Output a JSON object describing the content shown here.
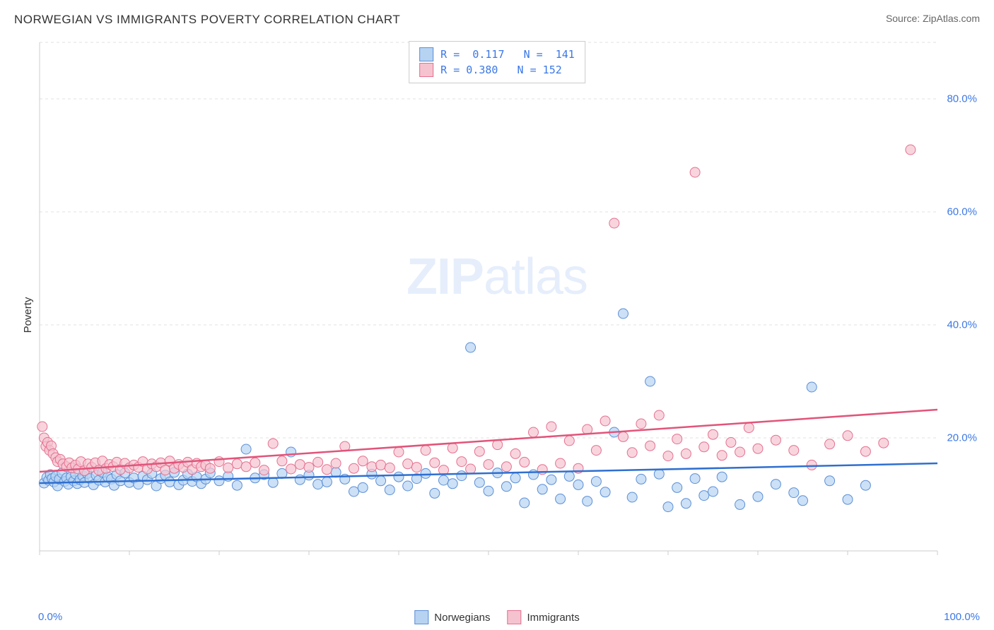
{
  "title": "NORWEGIAN VS IMMIGRANTS POVERTY CORRELATION CHART",
  "source_prefix": "Source: ",
  "source_name": "ZipAtlas.com",
  "watermark_bold": "ZIP",
  "watermark_rest": "atlas",
  "ylabel": "Poverty",
  "chart": {
    "type": "scatter-with-trend",
    "background_color": "#ffffff",
    "grid_color": "#e2e2e2",
    "grid_dash": "4 4",
    "axis_color": "#cccccc",
    "xlim": [
      0,
      100
    ],
    "ylim": [
      0,
      90
    ],
    "y_ticks": [
      20,
      40,
      60,
      80
    ],
    "y_tick_labels": [
      "20.0%",
      "40.0%",
      "60.0%",
      "80.0%"
    ],
    "x_tick_positions": [
      0,
      10,
      20,
      30,
      40,
      50,
      60,
      70,
      80,
      90,
      100
    ],
    "x_axis_left_label": "0.0%",
    "x_axis_right_label": "100.0%",
    "marker_radius": 7,
    "marker_stroke_width": 1,
    "trend_line_width": 2.5,
    "label_fontsize": 15,
    "tick_color": "#3b78e7"
  },
  "series": [
    {
      "key": "norwegians",
      "label": "Norwegians",
      "fill": "#b7d3f2",
      "stroke": "#5b8fd6",
      "line_color": "#2f6fd0",
      "R": "0.117",
      "N": "141",
      "trend": {
        "x1": 0,
        "y1": 12,
        "x2": 100,
        "y2": 15.5
      },
      "points": [
        [
          0.5,
          12
        ],
        [
          0.8,
          13
        ],
        [
          1,
          12.5
        ],
        [
          1.2,
          13.5
        ],
        [
          1.4,
          12.8
        ],
        [
          1.6,
          12.2
        ],
        [
          1.8,
          13.2
        ],
        [
          2,
          11.5
        ],
        [
          2.2,
          12.7
        ],
        [
          2.5,
          13.8
        ],
        [
          2.8,
          12.3
        ],
        [
          3,
          12.9
        ],
        [
          3.2,
          11.8
        ],
        [
          3.5,
          13.1
        ],
        [
          3.8,
          12.4
        ],
        [
          4,
          13.6
        ],
        [
          4.2,
          11.9
        ],
        [
          4.5,
          12.6
        ],
        [
          4.8,
          13.3
        ],
        [
          5,
          12.1
        ],
        [
          5.3,
          13.7
        ],
        [
          5.6,
          12.8
        ],
        [
          6,
          11.7
        ],
        [
          6.3,
          13.4
        ],
        [
          6.6,
          12.5
        ],
        [
          7,
          13.9
        ],
        [
          7.3,
          12.2
        ],
        [
          7.6,
          13.1
        ],
        [
          8,
          12.7
        ],
        [
          8.3,
          11.6
        ],
        [
          8.6,
          13.5
        ],
        [
          9,
          12.4
        ],
        [
          9.5,
          13.8
        ],
        [
          10,
          12.1
        ],
        [
          10.5,
          12.9
        ],
        [
          11,
          11.8
        ],
        [
          11.5,
          13.2
        ],
        [
          12,
          12.6
        ],
        [
          12.5,
          13.7
        ],
        [
          13,
          11.5
        ],
        [
          13.5,
          12.8
        ],
        [
          14,
          13.4
        ],
        [
          14.5,
          12.2
        ],
        [
          15,
          13.9
        ],
        [
          15.5,
          11.7
        ],
        [
          16,
          12.5
        ],
        [
          16.5,
          13.6
        ],
        [
          17,
          12.3
        ],
        [
          17.5,
          13.1
        ],
        [
          18,
          11.9
        ],
        [
          18.5,
          12.7
        ],
        [
          19,
          13.8
        ],
        [
          20,
          12.4
        ],
        [
          21,
          13.2
        ],
        [
          22,
          11.6
        ],
        [
          23,
          18
        ],
        [
          24,
          12.9
        ],
        [
          25,
          13.5
        ],
        [
          26,
          12.1
        ],
        [
          27,
          13.7
        ],
        [
          28,
          17.5
        ],
        [
          29,
          12.6
        ],
        [
          30,
          13.4
        ],
        [
          31,
          11.8
        ],
        [
          32,
          12.2
        ],
        [
          33,
          13.9
        ],
        [
          34,
          12.7
        ],
        [
          35,
          10.5
        ],
        [
          36,
          11.2
        ],
        [
          37,
          13.6
        ],
        [
          38,
          12.4
        ],
        [
          39,
          10.8
        ],
        [
          40,
          13.1
        ],
        [
          41,
          11.5
        ],
        [
          42,
          12.8
        ],
        [
          43,
          13.7
        ],
        [
          44,
          10.2
        ],
        [
          45,
          12.5
        ],
        [
          46,
          11.9
        ],
        [
          47,
          13.3
        ],
        [
          48,
          36
        ],
        [
          49,
          12.1
        ],
        [
          50,
          10.6
        ],
        [
          51,
          13.8
        ],
        [
          52,
          11.4
        ],
        [
          53,
          12.9
        ],
        [
          54,
          8.5
        ],
        [
          55,
          13.5
        ],
        [
          56,
          10.9
        ],
        [
          57,
          12.6
        ],
        [
          58,
          9.2
        ],
        [
          59,
          13.2
        ],
        [
          60,
          11.7
        ],
        [
          61,
          8.8
        ],
        [
          62,
          12.3
        ],
        [
          63,
          10.4
        ],
        [
          64,
          21
        ],
        [
          65,
          42
        ],
        [
          66,
          9.5
        ],
        [
          67,
          12.7
        ],
        [
          68,
          30
        ],
        [
          69,
          13.6
        ],
        [
          70,
          7.8
        ],
        [
          71,
          11.2
        ],
        [
          72,
          8.4
        ],
        [
          73,
          12.8
        ],
        [
          74,
          9.8
        ],
        [
          75,
          10.5
        ],
        [
          76,
          13.1
        ],
        [
          78,
          8.2
        ],
        [
          80,
          9.6
        ],
        [
          82,
          11.8
        ],
        [
          84,
          10.3
        ],
        [
          85,
          8.9
        ],
        [
          86,
          29
        ],
        [
          88,
          12.4
        ],
        [
          90,
          9.1
        ],
        [
          92,
          11.6
        ]
      ]
    },
    {
      "key": "immigrants",
      "label": "Immigrants",
      "fill": "#f5c3d0",
      "stroke": "#e5708f",
      "line_color": "#e1547a",
      "R": "0.380",
      "N": "152",
      "trend": {
        "x1": 0,
        "y1": 14,
        "x2": 100,
        "y2": 25
      },
      "points": [
        [
          0.3,
          22
        ],
        [
          0.5,
          20
        ],
        [
          0.7,
          18.5
        ],
        [
          0.9,
          19.2
        ],
        [
          1.1,
          17.8
        ],
        [
          1.3,
          18.6
        ],
        [
          1.5,
          17.2
        ],
        [
          1.8,
          16.5
        ],
        [
          2,
          15.8
        ],
        [
          2.3,
          16.2
        ],
        [
          2.6,
          15.4
        ],
        [
          3,
          14.9
        ],
        [
          3.3,
          15.6
        ],
        [
          3.6,
          14.7
        ],
        [
          4,
          15.2
        ],
        [
          4.3,
          14.5
        ],
        [
          4.6,
          15.8
        ],
        [
          5,
          14.2
        ],
        [
          5.4,
          15.4
        ],
        [
          5.8,
          14.8
        ],
        [
          6.2,
          15.6
        ],
        [
          6.6,
          14.3
        ],
        [
          7,
          15.9
        ],
        [
          7.4,
          14.6
        ],
        [
          7.8,
          15.3
        ],
        [
          8.2,
          14.9
        ],
        [
          8.6,
          15.7
        ],
        [
          9,
          14.4
        ],
        [
          9.5,
          15.5
        ],
        [
          10,
          14.7
        ],
        [
          10.5,
          15.2
        ],
        [
          11,
          14.8
        ],
        [
          11.5,
          15.8
        ],
        [
          12,
          14.5
        ],
        [
          12.5,
          15.4
        ],
        [
          13,
          14.9
        ],
        [
          13.5,
          15.6
        ],
        [
          14,
          14.3
        ],
        [
          14.5,
          15.9
        ],
        [
          15,
          14.6
        ],
        [
          15.5,
          15.3
        ],
        [
          16,
          14.8
        ],
        [
          16.5,
          15.7
        ],
        [
          17,
          14.4
        ],
        [
          17.5,
          15.5
        ],
        [
          18,
          14.9
        ],
        [
          18.5,
          15.2
        ],
        [
          19,
          14.6
        ],
        [
          20,
          15.8
        ],
        [
          21,
          14.7
        ],
        [
          22,
          15.4
        ],
        [
          23,
          14.9
        ],
        [
          24,
          15.6
        ],
        [
          25,
          14.3
        ],
        [
          26,
          19
        ],
        [
          27,
          15.9
        ],
        [
          28,
          14.5
        ],
        [
          29,
          15.3
        ],
        [
          30,
          14.8
        ],
        [
          31,
          15.7
        ],
        [
          32,
          14.4
        ],
        [
          33,
          15.5
        ],
        [
          34,
          18.5
        ],
        [
          35,
          14.6
        ],
        [
          36,
          15.9
        ],
        [
          37,
          14.9
        ],
        [
          38,
          15.2
        ],
        [
          39,
          14.7
        ],
        [
          40,
          17.5
        ],
        [
          41,
          15.4
        ],
        [
          42,
          14.8
        ],
        [
          43,
          17.8
        ],
        [
          44,
          15.6
        ],
        [
          45,
          14.3
        ],
        [
          46,
          18.2
        ],
        [
          47,
          15.8
        ],
        [
          48,
          14.5
        ],
        [
          49,
          17.6
        ],
        [
          50,
          15.3
        ],
        [
          51,
          18.8
        ],
        [
          52,
          14.9
        ],
        [
          53,
          17.2
        ],
        [
          54,
          15.7
        ],
        [
          55,
          21
        ],
        [
          56,
          14.4
        ],
        [
          57,
          22
        ],
        [
          58,
          15.5
        ],
        [
          59,
          19.5
        ],
        [
          60,
          14.6
        ],
        [
          61,
          21.5
        ],
        [
          62,
          17.8
        ],
        [
          63,
          23
        ],
        [
          64,
          58
        ],
        [
          65,
          20.2
        ],
        [
          66,
          17.4
        ],
        [
          67,
          22.5
        ],
        [
          68,
          18.6
        ],
        [
          69,
          24
        ],
        [
          70,
          16.8
        ],
        [
          71,
          19.8
        ],
        [
          72,
          17.2
        ],
        [
          73,
          67
        ],
        [
          74,
          18.4
        ],
        [
          75,
          20.6
        ],
        [
          76,
          16.9
        ],
        [
          77,
          19.2
        ],
        [
          78,
          17.5
        ],
        [
          79,
          21.8
        ],
        [
          80,
          18.1
        ],
        [
          82,
          19.6
        ],
        [
          84,
          17.8
        ],
        [
          86,
          15.2
        ],
        [
          88,
          18.9
        ],
        [
          90,
          20.4
        ],
        [
          92,
          17.6
        ],
        [
          94,
          19.1
        ],
        [
          97,
          71
        ]
      ]
    }
  ],
  "legend_top": {
    "r_prefix": "R = ",
    "n_prefix": "N = "
  }
}
